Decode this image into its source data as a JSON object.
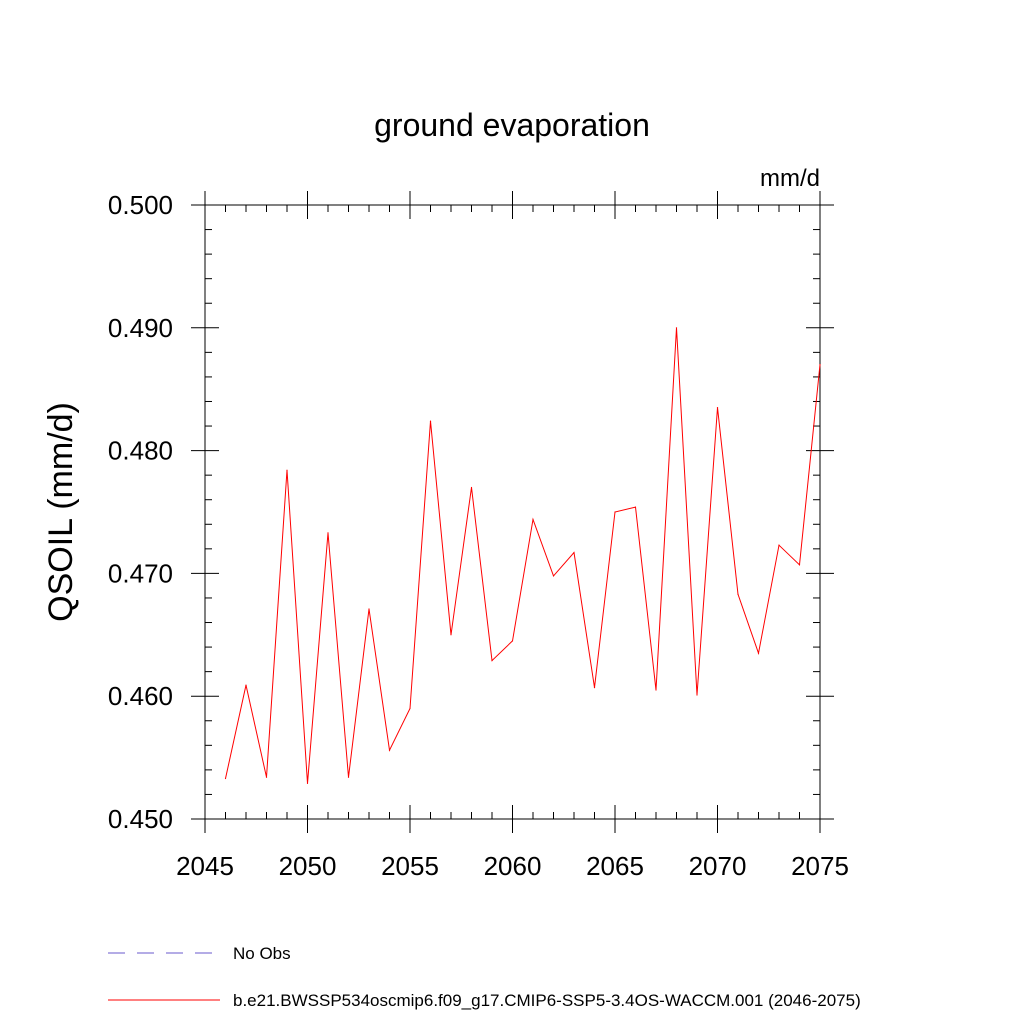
{
  "chart_data": {
    "type": "line",
    "title": "ground evaporation",
    "units_label": "mm/d",
    "ylabel": "QSOIL  (mm/d)",
    "xlabel": "",
    "xlim": [
      2045,
      2075
    ],
    "ylim": [
      0.45,
      0.5
    ],
    "xticks": [
      2045,
      2050,
      2055,
      2060,
      2065,
      2070,
      2075
    ],
    "xtick_labels": [
      "2045",
      "2050",
      "2055",
      "2060",
      "2065",
      "2070",
      "2075"
    ],
    "yticks": [
      0.45,
      0.46,
      0.47,
      0.48,
      0.49,
      0.5
    ],
    "ytick_labels": [
      "0.450",
      "0.460",
      "0.470",
      "0.480",
      "0.490",
      "0.500"
    ],
    "grid": false,
    "series": [
      {
        "name": "b.e21.BWSSP534oscmip6.f09_g17.CMIP6-SSP5-3.4OS-WACCM.001 (2046-2075)",
        "color": "#ff0000",
        "x": [
          2046,
          2047,
          2048,
          2049,
          2050,
          2051,
          2052,
          2053,
          2054,
          2055,
          2056,
          2057,
          2058,
          2059,
          2060,
          2061,
          2062,
          2063,
          2064,
          2065,
          2066,
          2067,
          2068,
          2069,
          2070,
          2071,
          2072,
          2073,
          2074,
          2075
        ],
        "values": [
          0.4533,
          0.4609,
          0.4534,
          0.4784,
          0.4529,
          0.4733,
          0.4534,
          0.4671,
          0.4556,
          0.459,
          0.4824,
          0.465,
          0.477,
          0.4629,
          0.4645,
          0.4744,
          0.4698,
          0.4717,
          0.4607,
          0.475,
          0.4754,
          0.4605,
          0.49,
          0.4601,
          0.4835,
          0.4683,
          0.4635,
          0.4723,
          0.4707,
          0.487
        ]
      }
    ],
    "legend": {
      "position": "bottom-left",
      "entries": [
        {
          "label": "No Obs",
          "style": "dashed",
          "color": "#6a5acd"
        },
        {
          "label": "b.e21.BWSSP534oscmip6.f09_g17.CMIP6-SSP5-3.4OS-WACCM.001 (2046-2075)",
          "style": "solid",
          "color": "#ff0000"
        }
      ]
    }
  }
}
